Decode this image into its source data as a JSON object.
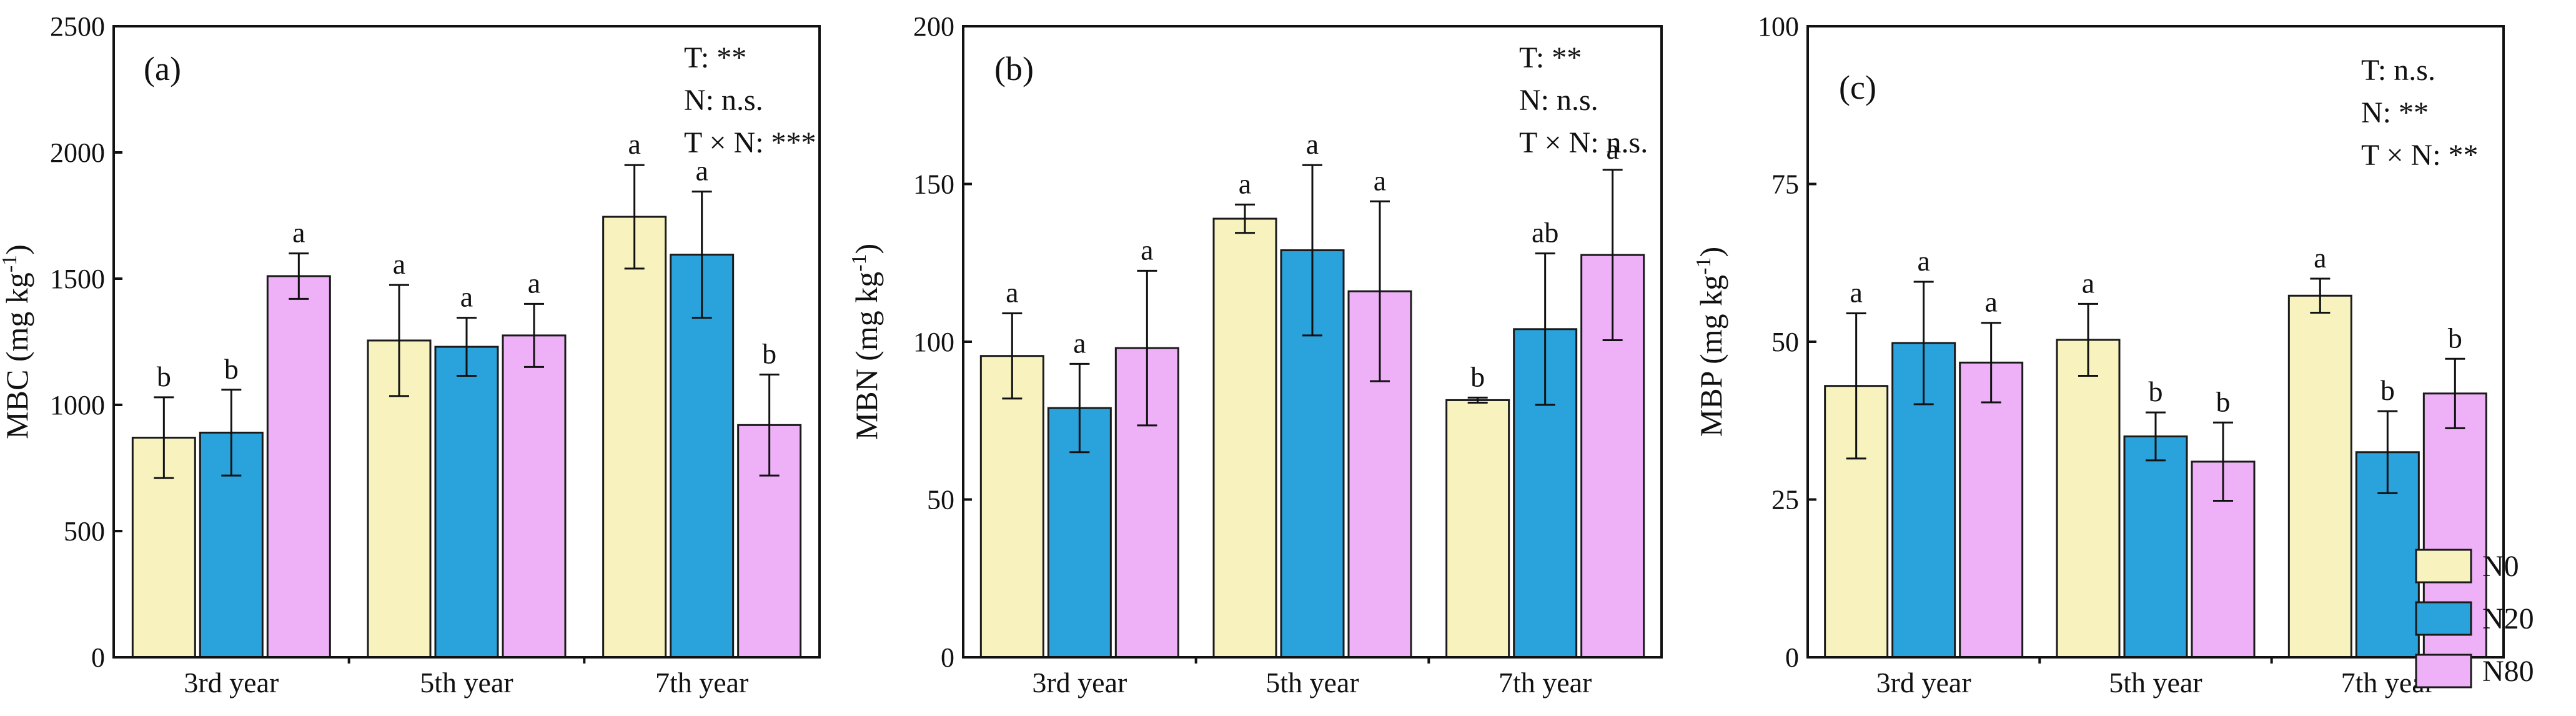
{
  "figure": {
    "legend": [
      {
        "name": "N0",
        "color": "#f8f2bf"
      },
      {
        "name": "N20",
        "color": "#2aa3dc"
      },
      {
        "name": "N80",
        "color": "#eeb0f6"
      }
    ]
  },
  "chart_data": [
    {
      "type": "bar",
      "panel": "(a)",
      "ylabel": "MBC (mg kg",
      "ylabel_sup": "-1",
      "ylabel_close": ")",
      "ylim": [
        0,
        2500
      ],
      "yticks": [
        0,
        500,
        1000,
        1500,
        2000,
        2500
      ],
      "categories": [
        "3rd year",
        "5th year",
        "7th year"
      ],
      "series": [
        {
          "name": "N0",
          "values": [
            870,
            1255,
            1745
          ],
          "errors": [
            160,
            220,
            205
          ],
          "letters": [
            "b",
            "a",
            "a"
          ]
        },
        {
          "name": "N20",
          "values": [
            890,
            1230,
            1595
          ],
          "errors": [
            170,
            115,
            250
          ],
          "letters": [
            "b",
            "a",
            "a"
          ]
        },
        {
          "name": "N80",
          "values": [
            1510,
            1275,
            920
          ],
          "errors": [
            90,
            125,
            200
          ],
          "letters": [
            "a",
            "a",
            "b"
          ]
        }
      ],
      "stats": [
        "T: **",
        "N: n.s.",
        "T × N: ***"
      ]
    },
    {
      "type": "bar",
      "panel": "(b)",
      "ylabel": "MBN (mg kg",
      "ylabel_sup": "-1",
      "ylabel_close": ")",
      "ylim": [
        0,
        200
      ],
      "yticks": [
        0,
        50,
        100,
        150,
        200
      ],
      "categories": [
        "3rd year",
        "5th year",
        "7th year"
      ],
      "series": [
        {
          "name": "N0",
          "values": [
            95.5,
            139,
            81.5
          ],
          "errors": [
            13.5,
            4.5,
            0.8
          ],
          "letters": [
            "a",
            "a",
            "b"
          ]
        },
        {
          "name": "N20",
          "values": [
            79,
            129,
            104
          ],
          "errors": [
            14,
            27,
            24
          ],
          "letters": [
            "a",
            "a",
            "ab"
          ]
        },
        {
          "name": "N80",
          "values": [
            98,
            116,
            127.5
          ],
          "errors": [
            24.5,
            28.5,
            27
          ],
          "letters": [
            "a",
            "a",
            "a"
          ]
        }
      ],
      "stats": [
        "T: **",
        "N: n.s.",
        "T × N: n.s."
      ]
    },
    {
      "type": "bar",
      "panel": "(c)",
      "ylabel": "MBP (mg kg",
      "ylabel_sup": "-1",
      "ylabel_close": ")",
      "ylim": [
        0,
        100
      ],
      "yticks": [
        0,
        25,
        50,
        75,
        100
      ],
      "categories": [
        "3rd year",
        "5th year",
        "7th year"
      ],
      "series": [
        {
          "name": "N0",
          "values": [
            43,
            50.3,
            57.3
          ],
          "errors": [
            11.5,
            5.7,
            2.7
          ],
          "letters": [
            "a",
            "a",
            "a"
          ]
        },
        {
          "name": "N20",
          "values": [
            49.8,
            35,
            32.5
          ],
          "errors": [
            9.7,
            3.8,
            6.5
          ],
          "letters": [
            "a",
            "b",
            "b"
          ]
        },
        {
          "name": "N80",
          "values": [
            46.7,
            31,
            41.8
          ],
          "errors": [
            6.3,
            6.2,
            5.5
          ],
          "letters": [
            "a",
            "b",
            "b"
          ]
        }
      ],
      "stats": [
        "T: n.s.",
        "N: **",
        "T × N: **"
      ]
    }
  ]
}
